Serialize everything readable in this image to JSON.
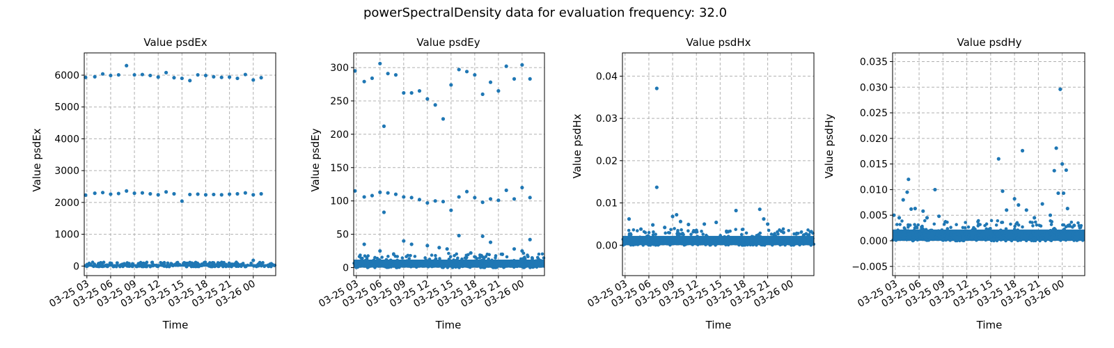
{
  "figure": {
    "title": "powerSpectralDensity data for evaluation frequency: 32.0"
  },
  "style": {
    "marker_color": "#1f77b4",
    "grid_color": "#b0b0b0"
  },
  "chart_data": [
    {
      "type": "scatter",
      "title": "Value psdEx",
      "xlabel": "Time",
      "ylabel": "Value psdEx",
      "xtick_labels": [
        "03-25 03",
        "03-25 06",
        "03-25 09",
        "03-25 12",
        "03-25 15",
        "03-25 18",
        "03-25 21",
        "03-26 00"
      ],
      "xlim": [
        "03-25 02:40",
        "03-26 02:50"
      ],
      "ylim": [
        -300,
        6700
      ],
      "yticks": [
        0,
        1000,
        2000,
        3000,
        4000,
        5000,
        6000
      ],
      "ytick_labels": [
        "0",
        "1000",
        "2000",
        "3000",
        "4000",
        "5000",
        "6000"
      ],
      "grid": true,
      "dense_band": {
        "x_from": "03-25 02:40",
        "x_to": "03-26 02:50",
        "y_from": -20,
        "y_to": 60
      },
      "points": [
        [
          "03-25 02:50",
          5930
        ],
        [
          "03-25 04:00",
          5950
        ],
        [
          "03-25 05:00",
          6040
        ],
        [
          "03-25 06:00",
          5990
        ],
        [
          "03-25 07:00",
          6010
        ],
        [
          "03-25 08:00",
          6300
        ],
        [
          "03-25 09:00",
          6010
        ],
        [
          "03-25 10:00",
          6020
        ],
        [
          "03-25 11:00",
          5990
        ],
        [
          "03-25 12:00",
          5940
        ],
        [
          "03-25 13:00",
          6080
        ],
        [
          "03-25 14:00",
          5920
        ],
        [
          "03-25 15:00",
          5900
        ],
        [
          "03-25 16:00",
          5830
        ],
        [
          "03-25 17:00",
          6010
        ],
        [
          "03-25 18:00",
          5990
        ],
        [
          "03-25 19:00",
          5950
        ],
        [
          "03-25 20:00",
          5930
        ],
        [
          "03-25 21:00",
          5940
        ],
        [
          "03-25 22:00",
          5900
        ],
        [
          "03-25 23:00",
          6020
        ],
        [
          "03-26 00:00",
          5850
        ],
        [
          "03-26 01:00",
          5920
        ],
        [
          "03-25 02:50",
          2230
        ],
        [
          "03-25 04:00",
          2290
        ],
        [
          "03-25 05:00",
          2310
        ],
        [
          "03-25 06:00",
          2260
        ],
        [
          "03-25 07:00",
          2280
        ],
        [
          "03-25 08:00",
          2360
        ],
        [
          "03-25 09:00",
          2290
        ],
        [
          "03-25 10:00",
          2300
        ],
        [
          "03-25 11:00",
          2270
        ],
        [
          "03-25 12:00",
          2240
        ],
        [
          "03-25 13:00",
          2330
        ],
        [
          "03-25 14:00",
          2270
        ],
        [
          "03-25 15:00",
          2040
        ],
        [
          "03-25 16:00",
          2250
        ],
        [
          "03-25 17:00",
          2260
        ],
        [
          "03-25 18:00",
          2240
        ],
        [
          "03-25 19:00",
          2250
        ],
        [
          "03-25 20:00",
          2240
        ],
        [
          "03-25 21:00",
          2260
        ],
        [
          "03-25 22:00",
          2270
        ],
        [
          "03-25 23:00",
          2300
        ],
        [
          "03-26 00:00",
          2240
        ],
        [
          "03-26 01:00",
          2270
        ],
        [
          "03-25 04:30",
          80
        ],
        [
          "03-25 16:00",
          110
        ],
        [
          "03-25 19:00",
          100
        ],
        [
          "03-26 00:00",
          180
        ],
        [
          "03-25 10:00",
          70
        ]
      ]
    },
    {
      "type": "scatter",
      "title": "Value psdEy",
      "xlabel": "Time",
      "ylabel": "Value psdEy",
      "xtick_labels": [
        "03-25 03",
        "03-25 06",
        "03-25 09",
        "03-25 12",
        "03-25 15",
        "03-25 18",
        "03-25 21",
        "03-26 00"
      ],
      "xlim": [
        "03-25 02:40",
        "03-26 02:50"
      ],
      "ylim": [
        -12,
        322
      ],
      "yticks": [
        0,
        50,
        100,
        150,
        200,
        250,
        300
      ],
      "ytick_labels": [
        "0",
        "50",
        "100",
        "150",
        "200",
        "250",
        "300"
      ],
      "grid": true,
      "dense_band": {
        "x_from": "03-25 02:40",
        "x_to": "03-26 02:50",
        "y_from": 0,
        "y_to": 12
      },
      "points": [
        [
          "03-25 02:50",
          295
        ],
        [
          "03-25 04:00",
          279
        ],
        [
          "03-25 05:00",
          284
        ],
        [
          "03-25 06:00",
          306
        ],
        [
          "03-25 07:00",
          291
        ],
        [
          "03-25 08:00",
          289
        ],
        [
          "03-25 09:00",
          262
        ],
        [
          "03-25 10:00",
          262
        ],
        [
          "03-25 11:00",
          265
        ],
        [
          "03-25 12:00",
          253
        ],
        [
          "03-25 13:00",
          244
        ],
        [
          "03-25 14:00",
          223
        ],
        [
          "03-25 15:00",
          274
        ],
        [
          "03-25 16:00",
          297
        ],
        [
          "03-25 17:00",
          294
        ],
        [
          "03-25 18:00",
          289
        ],
        [
          "03-25 19:00",
          260
        ],
        [
          "03-25 20:00",
          278
        ],
        [
          "03-25 21:00",
          265
        ],
        [
          "03-25 22:00",
          302
        ],
        [
          "03-25 23:00",
          283
        ],
        [
          "03-26 00:00",
          304
        ],
        [
          "03-26 01:00",
          283
        ],
        [
          "03-25 06:30",
          212
        ],
        [
          "03-25 02:50",
          115
        ],
        [
          "03-25 04:00",
          106
        ],
        [
          "03-25 05:00",
          108
        ],
        [
          "03-25 06:00",
          113
        ],
        [
          "03-25 07:00",
          112
        ],
        [
          "03-25 08:00",
          110
        ],
        [
          "03-25 09:00",
          106
        ],
        [
          "03-25 10:00",
          105
        ],
        [
          "03-25 11:00",
          102
        ],
        [
          "03-25 12:00",
          97
        ],
        [
          "03-25 13:00",
          100
        ],
        [
          "03-25 14:00",
          99
        ],
        [
          "03-25 15:00",
          86
        ],
        [
          "03-25 16:00",
          106
        ],
        [
          "03-25 17:00",
          114
        ],
        [
          "03-25 18:00",
          105
        ],
        [
          "03-25 19:00",
          98
        ],
        [
          "03-25 20:00",
          103
        ],
        [
          "03-25 21:00",
          101
        ],
        [
          "03-25 22:00",
          116
        ],
        [
          "03-25 23:00",
          103
        ],
        [
          "03-26 00:00",
          120
        ],
        [
          "03-26 01:00",
          105
        ],
        [
          "03-25 06:30",
          83
        ],
        [
          "03-25 04:00",
          35
        ],
        [
          "03-25 06:00",
          25
        ],
        [
          "03-25 09:00",
          40
        ],
        [
          "03-25 10:00",
          35
        ],
        [
          "03-25 12:00",
          33
        ],
        [
          "03-25 13:30",
          30
        ],
        [
          "03-25 16:00",
          48
        ],
        [
          "03-25 19:00",
          47
        ],
        [
          "03-25 20:00",
          38
        ],
        [
          "03-25 23:00",
          28
        ],
        [
          "03-26 00:00",
          25
        ],
        [
          "03-26 01:00",
          42
        ],
        [
          "03-25 14:30",
          28
        ],
        [
          "03-25 17:30",
          22
        ],
        [
          "03-25 21:30",
          20
        ]
      ]
    },
    {
      "type": "scatter",
      "title": "Value psdHx",
      "xlabel": "Time",
      "ylabel": "Value psdHx",
      "xtick_labels": [
        "03-25 03",
        "03-25 06",
        "03-25 09",
        "03-25 12",
        "03-25 15",
        "03-25 18",
        "03-25 21",
        "03-26 00"
      ],
      "xlim": [
        "03-25 02:40",
        "03-26 02:50"
      ],
      "ylim": [
        -0.0072,
        0.0455
      ],
      "yticks": [
        0,
        0.01,
        0.02,
        0.03,
        0.04
      ],
      "ytick_labels": [
        "0.00",
        "0.01",
        "0.02",
        "0.03",
        "0.04"
      ],
      "grid": true,
      "dense_band": {
        "x_from": "03-25 02:40",
        "x_to": "03-26 02:50",
        "y_from": 0,
        "y_to": 0.0022
      },
      "points": [
        [
          "03-25 03:30",
          0.0062
        ],
        [
          "03-25 07:00",
          0.0371
        ],
        [
          "03-25 07:00",
          0.0137
        ],
        [
          "03-25 06:30",
          0.0048
        ],
        [
          "03-25 09:00",
          0.0068
        ],
        [
          "03-25 09:30",
          0.0072
        ],
        [
          "03-25 10:00",
          0.0056
        ],
        [
          "03-25 11:00",
          0.0049
        ],
        [
          "03-25 13:00",
          0.005
        ],
        [
          "03-25 14:30",
          0.0054
        ],
        [
          "03-25 17:00",
          0.0082
        ],
        [
          "03-25 20:00",
          0.0085
        ],
        [
          "03-25 20:30",
          0.0062
        ],
        [
          "03-25 21:00",
          0.005
        ],
        [
          "03-25 05:00",
          0.0038
        ],
        [
          "03-25 12:00",
          0.0035
        ],
        [
          "03-25 16:00",
          0.0032
        ],
        [
          "03-25 23:00",
          0.003
        ],
        [
          "03-26 02:30",
          0.0032
        ],
        [
          "03-25 08:00",
          0.0042
        ]
      ]
    },
    {
      "type": "scatter",
      "title": "Value psdHy",
      "xlabel": "Time",
      "ylabel": "Value psdHy",
      "xtick_labels": [
        "03-25 03",
        "03-25 06",
        "03-25 09",
        "03-25 12",
        "03-25 15",
        "03-25 18",
        "03-25 21",
        "03-26 00"
      ],
      "xlim": [
        "03-25 02:40",
        "03-26 02:50"
      ],
      "ylim": [
        -0.0068,
        0.0367
      ],
      "yticks": [
        -0.005,
        0,
        0.005,
        0.01,
        0.015,
        0.02,
        0.025,
        0.03,
        0.035
      ],
      "ytick_labels": [
        "−0.005",
        "0.000",
        "0.005",
        "0.010",
        "0.015",
        "0.020",
        "0.025",
        "0.030",
        "0.035"
      ],
      "grid": true,
      "dense_band": {
        "x_from": "03-25 02:40",
        "x_to": "03-26 02:50",
        "y_from": 0,
        "y_to": 0.0022
      },
      "points": [
        [
          "03-25 02:50",
          0.005
        ],
        [
          "03-25 03:30",
          0.0045
        ],
        [
          "03-25 04:00",
          0.008
        ],
        [
          "03-25 04:30",
          0.0095
        ],
        [
          "03-25 04:40",
          0.012
        ],
        [
          "03-25 05:00",
          0.0062
        ],
        [
          "03-25 05:30",
          0.0063
        ],
        [
          "03-25 06:30",
          0.0058
        ],
        [
          "03-25 08:00",
          0.01
        ],
        [
          "03-25 08:30",
          0.0048
        ],
        [
          "03-25 07:00",
          0.0045
        ],
        [
          "03-25 16:00",
          0.016
        ],
        [
          "03-25 16:30",
          0.0097
        ],
        [
          "03-25 17:00",
          0.006
        ],
        [
          "03-25 18:00",
          0.0082
        ],
        [
          "03-25 18:30",
          0.007
        ],
        [
          "03-25 19:00",
          0.0176
        ],
        [
          "03-25 19:30",
          0.006
        ],
        [
          "03-25 21:30",
          0.0072
        ],
        [
          "03-25 23:00",
          0.0137
        ],
        [
          "03-25 23:15",
          0.0181
        ],
        [
          "03-25 23:45",
          0.0296
        ],
        [
          "03-26 00:00",
          0.015
        ],
        [
          "03-26 00:10",
          0.0093
        ],
        [
          "03-26 00:30",
          0.0138
        ],
        [
          "03-26 00:40",
          0.0063
        ],
        [
          "03-25 23:30",
          0.0093
        ],
        [
          "03-25 22:30",
          0.005
        ],
        [
          "03-26 01:30",
          0.003
        ],
        [
          "03-25 20:30",
          0.0045
        ]
      ]
    }
  ]
}
